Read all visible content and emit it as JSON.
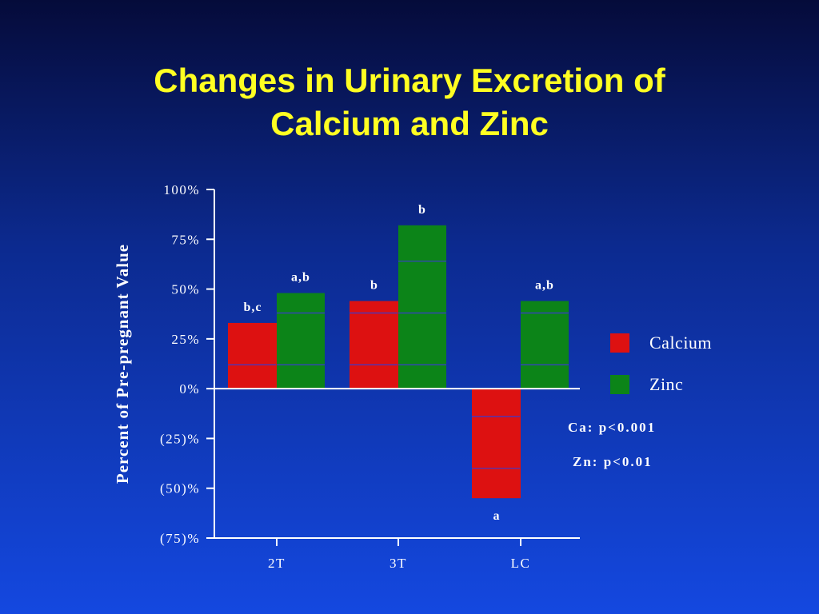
{
  "title": [
    "Changes in Urinary Excretion of",
    "Calcium and Zinc"
  ],
  "chart_data": {
    "type": "bar",
    "categories": [
      "2T",
      "3T",
      "LC"
    ],
    "series": [
      {
        "name": "Calcium",
        "color": "#dd1111",
        "values": [
          33,
          44,
          -55
        ],
        "inner_lines": [
          [
            12
          ],
          [
            12,
            38
          ],
          [
            -14,
            -40
          ]
        ]
      },
      {
        "name": "Zinc",
        "color": "#0c8418",
        "values": [
          48,
          82,
          44
        ],
        "inner_lines": [
          [
            12,
            38
          ],
          [
            12,
            38,
            64
          ],
          [
            12,
            38
          ]
        ]
      }
    ],
    "annotations": [
      {
        "series": 0,
        "category": 0,
        "text": "b,c"
      },
      {
        "series": 1,
        "category": 0,
        "text": "a,b"
      },
      {
        "series": 0,
        "category": 1,
        "text": "b"
      },
      {
        "series": 1,
        "category": 1,
        "text": "b"
      },
      {
        "series": 0,
        "category": 2,
        "text": "a"
      },
      {
        "series": 1,
        "category": 2,
        "text": "a,b"
      }
    ],
    "ylabel": "Percent of Pre-pregnant Value",
    "xlabel": "",
    "ylim": [
      -75,
      100
    ],
    "yticks": [
      100,
      75,
      50,
      25,
      0,
      -25,
      -50,
      -75
    ],
    "ytick_labels": [
      "100%",
      "75%",
      "50%",
      "25%",
      "0%",
      "(25)%",
      "(50)%",
      "(75)%"
    ],
    "grid": false,
    "legend_position": "right",
    "stats": [
      "Ca: p<0.001",
      "Zn: p<0.01"
    ]
  },
  "colors": {
    "title": "#ffff22",
    "axis": "#ffffff",
    "inner_line": "#3a3ad0"
  }
}
